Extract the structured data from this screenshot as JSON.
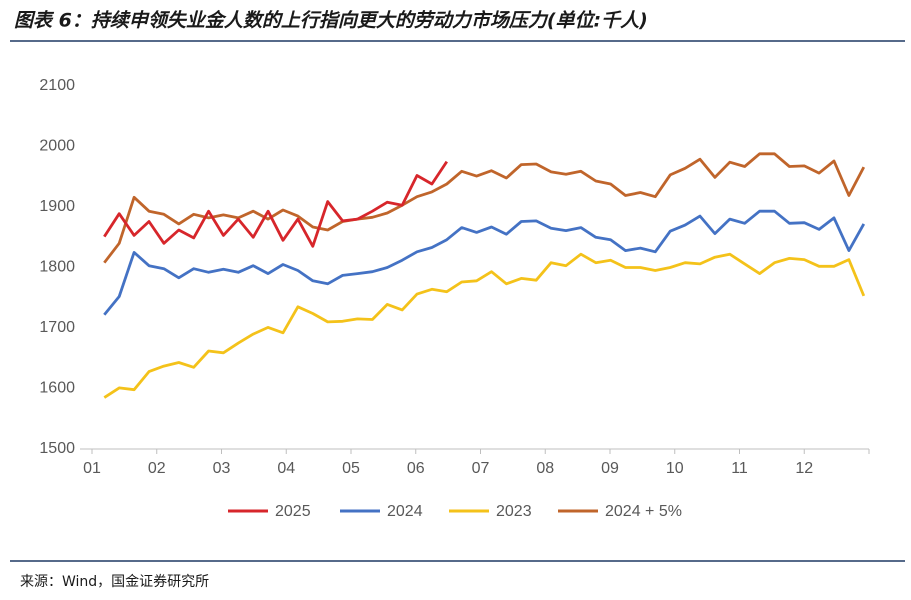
{
  "chart_data": {
    "type": "line",
    "title": "图表 6：持续申领失业金人数的上行指向更大的劳动力市场压力(单位:千人)",
    "source": "来源：Wind，国金证券研究所",
    "x": [
      1.19,
      1.42,
      1.65,
      1.88,
      2.11,
      2.34,
      2.57,
      2.8,
      3.03,
      3.26,
      3.49,
      3.72,
      3.95,
      4.18,
      4.41,
      4.64,
      4.87,
      5.1,
      5.33,
      5.56,
      5.79,
      6.02,
      6.25,
      6.48,
      6.71,
      6.94,
      7.17,
      7.4,
      7.63,
      7.86,
      8.09,
      8.32,
      8.55,
      8.78,
      9.01,
      9.24,
      9.47,
      9.7,
      9.93,
      10.16,
      10.39,
      10.62,
      10.85,
      11.08,
      11.31,
      11.54,
      11.77,
      12.0,
      12.23,
      12.46,
      12.69,
      12.92
    ],
    "series": [
      {
        "name": "2025",
        "color": "#d7262b",
        "values": [
          1851,
          1889,
          1853,
          1876,
          1840,
          1862,
          1849,
          1893,
          1853,
          1880,
          1850,
          1893,
          1845,
          1880,
          1835,
          1909,
          1877,
          1880,
          1893,
          1908,
          1903,
          1952,
          1938,
          1975,
          null,
          null,
          null,
          null,
          null,
          null,
          null,
          null,
          null,
          null,
          null,
          null,
          null,
          null,
          null,
          null,
          null,
          null,
          null,
          null,
          null,
          null,
          null,
          null,
          null,
          null,
          null,
          null
        ]
      },
      {
        "name": "2024",
        "color": "#4472c4",
        "values": [
          1722,
          1752,
          1825,
          1803,
          1798,
          1783,
          1798,
          1792,
          1797,
          1792,
          1803,
          1790,
          1805,
          1795,
          1778,
          1773,
          1787,
          1790,
          1793,
          1800,
          1812,
          1826,
          1833,
          1846,
          1866,
          1858,
          1867,
          1855,
          1876,
          1877,
          1865,
          1861,
          1866,
          1850,
          1846,
          1828,
          1832,
          1826,
          1860,
          1870,
          1885,
          1856,
          1880,
          1873,
          1893,
          1893,
          1873,
          1874,
          1863,
          1882,
          1828,
          1872
        ]
      },
      {
        "name": "2023",
        "color": "#f4c21a",
        "values": [
          1585,
          1601,
          1598,
          1628,
          1637,
          1643,
          1635,
          1662,
          1659,
          1675,
          1690,
          1701,
          1692,
          1735,
          1724,
          1710,
          1711,
          1715,
          1714,
          1739,
          1730,
          1756,
          1764,
          1760,
          1776,
          1778,
          1793,
          1773,
          1782,
          1779,
          1808,
          1803,
          1822,
          1808,
          1812,
          1800,
          1800,
          1795,
          1800,
          1808,
          1806,
          1817,
          1822,
          1806,
          1790,
          1808,
          1815,
          1813,
          1802,
          1802,
          1813,
          1753
        ]
      },
      {
        "name": "2024 + 5%",
        "color": "#c0652b",
        "values": [
          1808,
          1840,
          1916,
          1893,
          1888,
          1872,
          1888,
          1882,
          1887,
          1882,
          1893,
          1880,
          1895,
          1885,
          1867,
          1862,
          1876,
          1880,
          1883,
          1890,
          1903,
          1917,
          1925,
          1938,
          1959,
          1951,
          1960,
          1948,
          1970,
          1971,
          1958,
          1954,
          1959,
          1943,
          1938,
          1919,
          1924,
          1917,
          1953,
          1964,
          1979,
          1949,
          1974,
          1967,
          1988,
          1988,
          1967,
          1968,
          1956,
          1976,
          1919,
          1966
        ]
      }
    ],
    "xlim": [
      1,
      13
    ],
    "xticks": [
      {
        "value": 1,
        "label": "01"
      },
      {
        "value": 2,
        "label": "02"
      },
      {
        "value": 3,
        "label": "03"
      },
      {
        "value": 4,
        "label": "04"
      },
      {
        "value": 5,
        "label": "05"
      },
      {
        "value": 6,
        "label": "06"
      },
      {
        "value": 7,
        "label": "07"
      },
      {
        "value": 8,
        "label": "08"
      },
      {
        "value": 9,
        "label": "09"
      },
      {
        "value": 10,
        "label": "10"
      },
      {
        "value": 11,
        "label": "11"
      },
      {
        "value": 12,
        "label": "12"
      }
    ],
    "ylim": [
      1500,
      2100
    ],
    "yticks": [
      1500,
      1600,
      1700,
      1800,
      1900,
      2000,
      2100
    ]
  }
}
